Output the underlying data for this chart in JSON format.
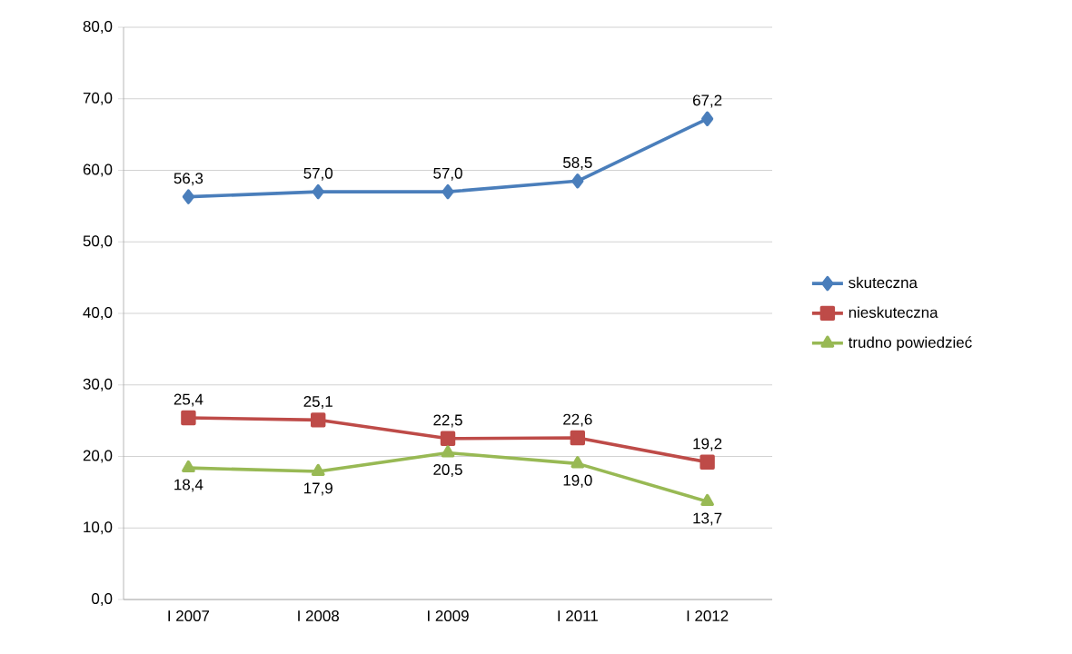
{
  "chart_data": {
    "type": "line",
    "categories": [
      "I 2007",
      "I 2008",
      "I 2009",
      "I 2011",
      "I 2012"
    ],
    "series": [
      {
        "name": "skuteczna",
        "color": "#4a7ebb",
        "marker": "diamond",
        "values": [
          56.3,
          57.0,
          57.0,
          58.5,
          67.2
        ],
        "value_labels": [
          "56,3",
          "57,0",
          "57,0",
          "58,5",
          "67,2"
        ]
      },
      {
        "name": "nieskuteczna",
        "color": "#be4b48",
        "marker": "square",
        "values": [
          25.4,
          25.1,
          22.5,
          22.6,
          19.2
        ],
        "value_labels": [
          "25,4",
          "25,1",
          "22,5",
          "22,6",
          "19,2"
        ]
      },
      {
        "name": "trudno powiedzieć",
        "color": "#98b954",
        "marker": "triangle",
        "values": [
          18.4,
          17.9,
          20.5,
          19.0,
          13.7
        ],
        "value_labels": [
          "18,4",
          "17,9",
          "20,5",
          "19,0",
          "13,7"
        ]
      }
    ],
    "ylim": [
      0,
      80
    ],
    "yticks": [
      {
        "value": 0,
        "label": "0,0"
      },
      {
        "value": 10,
        "label": "10,0"
      },
      {
        "value": 20,
        "label": "20,0"
      },
      {
        "value": 30,
        "label": "30,0"
      },
      {
        "value": 40,
        "label": "40,0"
      },
      {
        "value": 50,
        "label": "50,0"
      },
      {
        "value": 60,
        "label": "60,0"
      },
      {
        "value": 70,
        "label": "70,0"
      },
      {
        "value": 80,
        "label": "80,0"
      }
    ],
    "grid": "y",
    "legend": "right"
  }
}
